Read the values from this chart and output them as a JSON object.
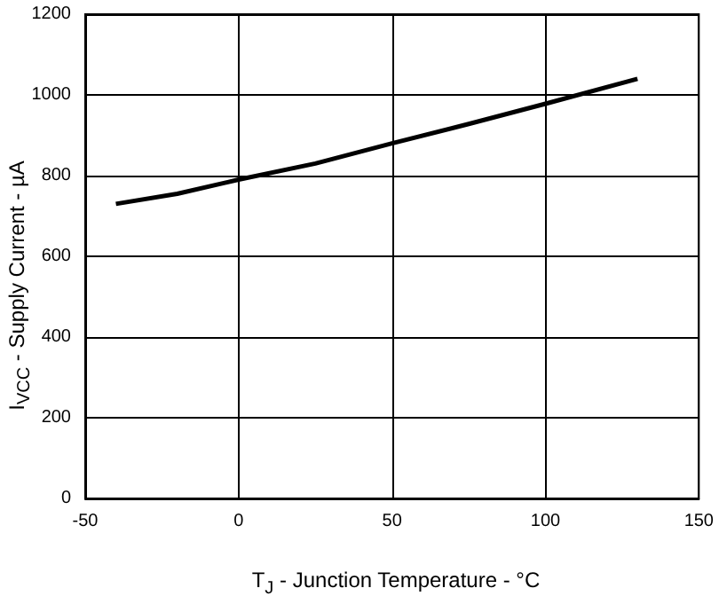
{
  "chart_data": {
    "type": "line",
    "xlabel": "T$_{J}$ - Junction Temperature - °C",
    "ylabel": "I$_{VCC}$ - Supply Current - µA",
    "x": [
      -40,
      -20,
      0,
      25,
      50,
      75,
      100,
      130
    ],
    "series": [
      {
        "color": "#000000",
        "values": [
          730,
          755,
          790,
          830,
          880,
          928,
          978,
          1040
        ]
      }
    ],
    "xlim": [
      -50,
      150
    ],
    "xticks": [
      -50,
      0,
      50,
      100,
      150
    ],
    "ylim": [
      0,
      1200
    ],
    "yticks": [
      0,
      200,
      400,
      600,
      800,
      1000,
      1200
    ],
    "grid": true,
    "marker": "none",
    "line_style": "solid"
  }
}
